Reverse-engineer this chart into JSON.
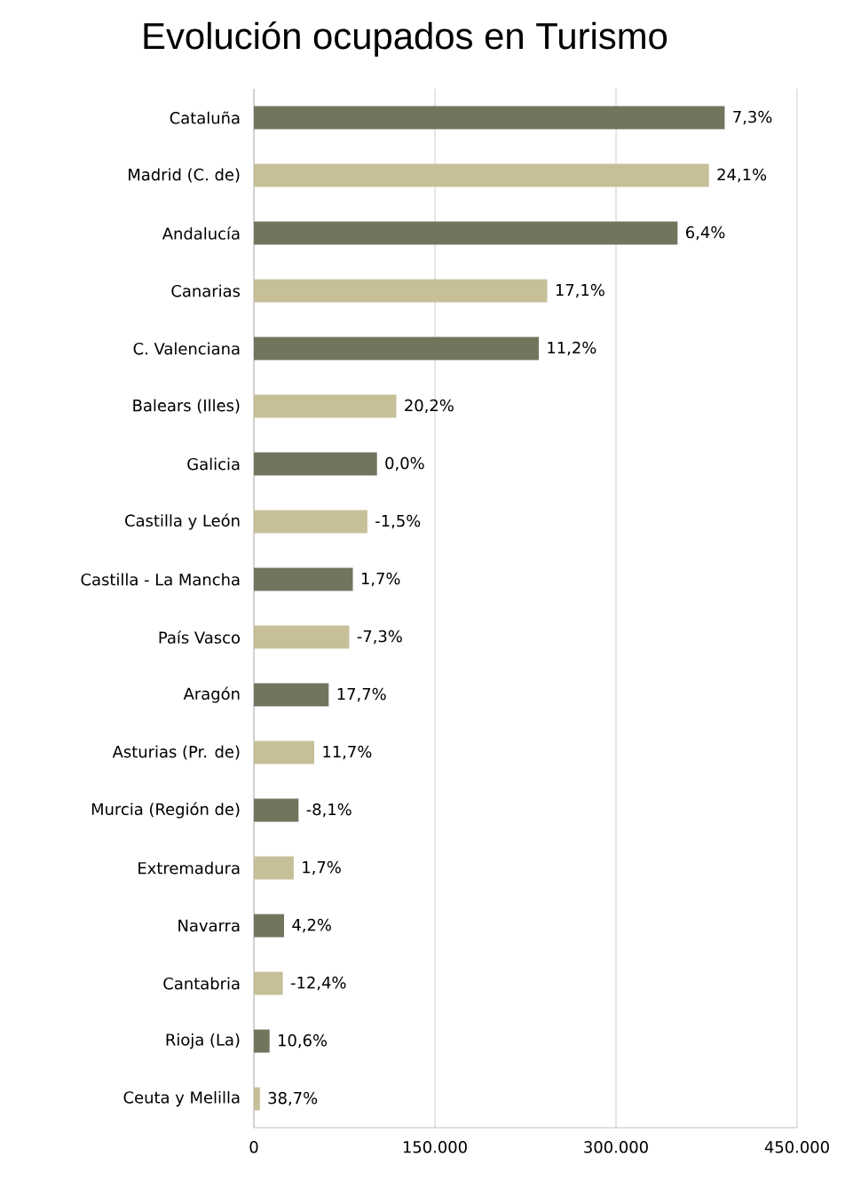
{
  "chart_data": {
    "type": "bar",
    "orientation": "horizontal",
    "title": "Evolución ocupados en Turismo",
    "categories": [
      "Cataluña",
      "Madrid (C. de)",
      "Andalucía",
      "Canarias",
      "C. Valenciana",
      "Balears (Illes)",
      "Galicia",
      "Castilla y León",
      "Castilla - La Mancha",
      "País Vasco",
      "Aragón",
      "Asturias (Pr. de)",
      "Murcia (Región de)",
      "Extremadura",
      "Navarra",
      "Cantabria",
      "Rioja (La)",
      "Ceuta y Melilla"
    ],
    "values": [
      390000,
      377000,
      351000,
      243000,
      236000,
      118000,
      102000,
      94000,
      82000,
      79000,
      62000,
      50000,
      37000,
      33000,
      25000,
      24000,
      13000,
      5000
    ],
    "colors": [
      "#72745e",
      "#c6bf98",
      "#72745e",
      "#c6bf98",
      "#72745e",
      "#c6bf98",
      "#72745e",
      "#c6bf98",
      "#72745e",
      "#c6bf98",
      "#72745e",
      "#c6bf98",
      "#72745e",
      "#c6bf98",
      "#72745e",
      "#c6bf98",
      "#72745e",
      "#c6bf98"
    ],
    "annotations": [
      {
        "text": "7,3%",
        "x": 390000
      },
      {
        "text": "24,1%",
        "x": 377000
      },
      {
        "text": "6,4%",
        "x": 351000
      },
      {
        "text": "17,1%",
        "x": 243000
      },
      {
        "text": "11,2%",
        "x": 236000
      },
      {
        "text": "20,2%",
        "x": 118000
      },
      {
        "text": "0,0%",
        "x": 102000
      },
      {
        "text": "-1,5%",
        "x": 94000
      },
      {
        "text": "1,7%",
        "x": 82000
      },
      {
        "text": "-7,3%",
        "x": 79000
      },
      {
        "text": "17,7%",
        "x": 62000
      },
      {
        "text": "11,7%",
        "x": 50000
      },
      {
        "text": "-8,1%",
        "x": 37000
      },
      {
        "text": "1,7%",
        "x": 33000
      },
      {
        "text": "4,2%",
        "x": 25000
      },
      {
        "text": "-12,4%",
        "x": 24000
      },
      {
        "text": "10,6%",
        "x": 13000
      },
      {
        "text": "38,7%",
        "x": 5000
      }
    ],
    "xlim": [
      0,
      450000
    ],
    "xticks": [
      0,
      {
        "value": 150000,
        "label": "150.000"
      },
      {
        "value": 300000,
        "label": "300.000"
      },
      {
        "value": 450000,
        "label": "450.000"
      }
    ],
    "grid": "x"
  }
}
